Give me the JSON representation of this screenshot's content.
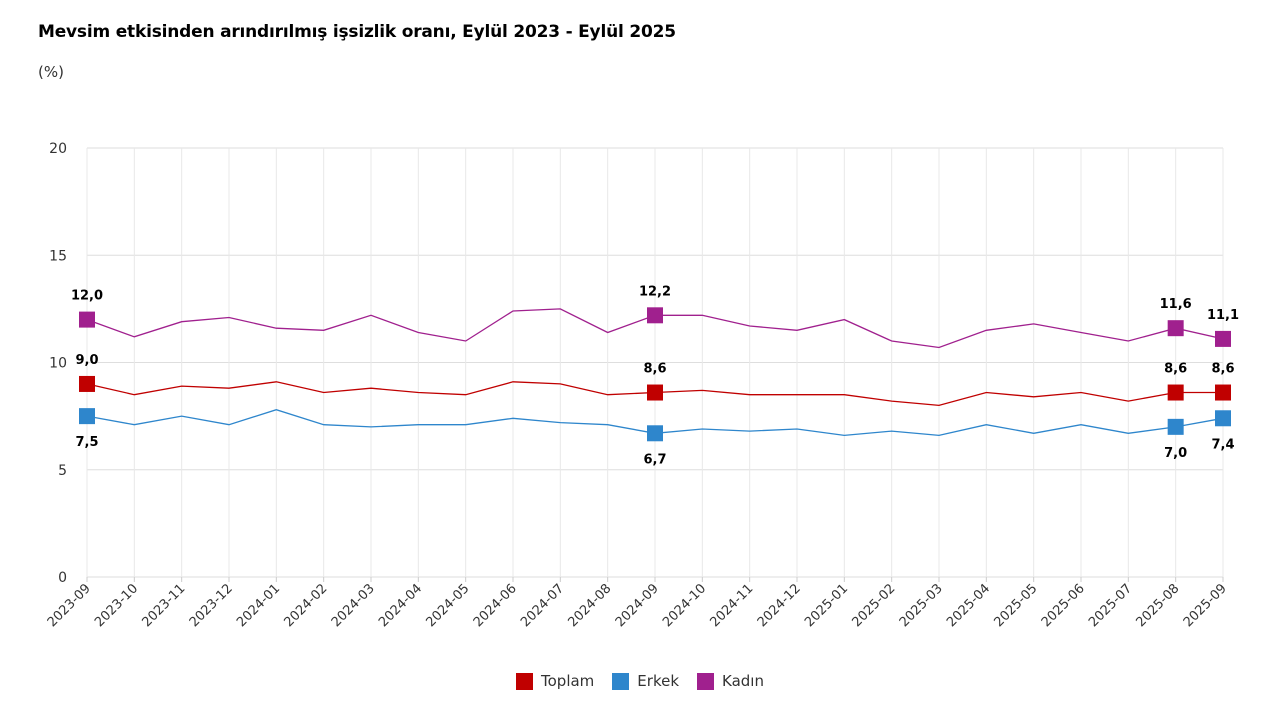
{
  "title": "Mevsim etkisinden arındırılmış işsizlik oranı, Eylül 2023 - Eylül 2025",
  "subtitle": "(%)",
  "chart_data": {
    "type": "line",
    "title": "Mevsim etkisinden arındırılmış işsizlik oranı, Eylül 2023 - Eylül 2025",
    "ylabel": "(%)",
    "ylim": [
      0,
      20
    ],
    "yticks": [
      "0",
      "5",
      "10",
      "15",
      "20"
    ],
    "grid": true,
    "legend_position": "bottom",
    "x": [
      "2023-09",
      "2023-10",
      "2023-11",
      "2023-12",
      "2024-01",
      "2024-02",
      "2024-03",
      "2024-04",
      "2024-05",
      "2024-06",
      "2024-07",
      "2024-08",
      "2024-09",
      "2024-10",
      "2024-11",
      "2024-12",
      "2025-01",
      "2025-02",
      "2025-03",
      "2025-04",
      "2025-05",
      "2025-06",
      "2025-07",
      "2025-08",
      "2025-09"
    ],
    "series": [
      {
        "name": "Toplam",
        "color": "#c00000",
        "values": [
          9.0,
          8.5,
          8.9,
          8.8,
          9.1,
          8.6,
          8.8,
          8.6,
          8.5,
          9.1,
          9.0,
          8.5,
          8.6,
          8.7,
          8.5,
          8.5,
          8.5,
          8.2,
          8.0,
          8.6,
          8.4,
          8.6,
          8.2,
          8.6,
          8.6
        ]
      },
      {
        "name": "Erkek",
        "color": "#2e86cc",
        "values": [
          7.5,
          7.1,
          7.5,
          7.1,
          7.8,
          7.1,
          7.0,
          7.1,
          7.1,
          7.4,
          7.2,
          7.1,
          6.7,
          6.9,
          6.8,
          6.9,
          6.6,
          6.8,
          6.6,
          7.1,
          6.7,
          7.1,
          6.7,
          7.0,
          7.4
        ]
      },
      {
        "name": "Kadın",
        "color": "#a0208e",
        "values": [
          12.0,
          11.2,
          11.9,
          12.1,
          11.6,
          11.5,
          12.2,
          11.4,
          11.0,
          12.4,
          12.5,
          11.4,
          12.2,
          12.2,
          11.7,
          11.5,
          12.0,
          11.0,
          10.7,
          11.5,
          11.8,
          11.4,
          11.0,
          11.6,
          11.1
        ]
      }
    ],
    "annotations": [
      {
        "series": 2,
        "index": 0,
        "label": "12,0"
      },
      {
        "series": 0,
        "index": 0,
        "label": "9,0"
      },
      {
        "series": 1,
        "index": 0,
        "label": "7,5"
      },
      {
        "series": 2,
        "index": 12,
        "label": "12,2"
      },
      {
        "series": 0,
        "index": 12,
        "label": "8,6"
      },
      {
        "series": 1,
        "index": 12,
        "label": "6,7"
      },
      {
        "series": 2,
        "index": 23,
        "label": "11,6"
      },
      {
        "series": 0,
        "index": 23,
        "label": "8,6"
      },
      {
        "series": 1,
        "index": 23,
        "label": "7,0"
      },
      {
        "series": 2,
        "index": 24,
        "label": "11,1"
      },
      {
        "series": 0,
        "index": 24,
        "label": "8,6"
      },
      {
        "series": 1,
        "index": 24,
        "label": "7,4"
      }
    ]
  }
}
